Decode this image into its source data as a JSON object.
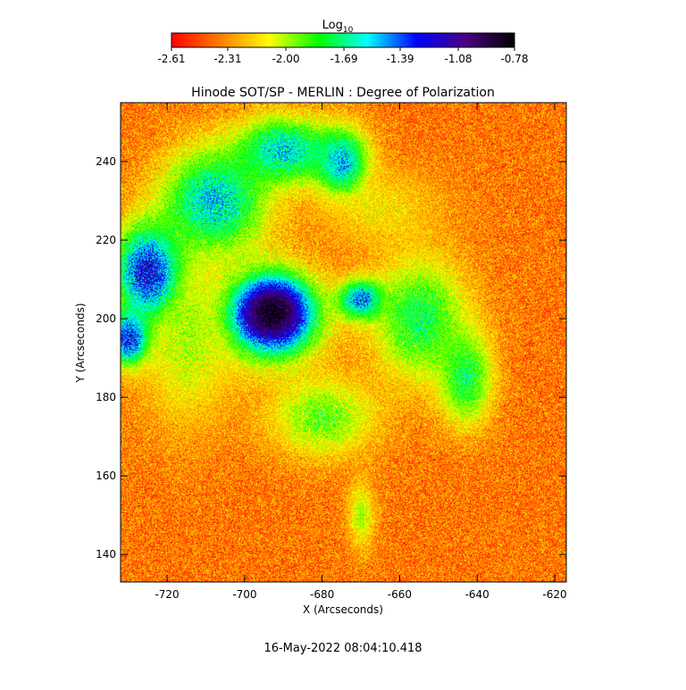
{
  "chart_data": {
    "type": "heatmap",
    "title": "Hinode SOT/SP - MERLIN : Degree of Polarization",
    "xlabel": "X (Arcseconds)",
    "ylabel": "Y (Arcseconds)",
    "xlim": [
      -732,
      -617
    ],
    "ylim": [
      133,
      255
    ],
    "x_ticks": [
      -720,
      -700,
      -680,
      -660,
      -640,
      -620
    ],
    "y_ticks": [
      140,
      160,
      180,
      200,
      220,
      240
    ],
    "colorbar": {
      "label_main": "Log",
      "label_sub": "10",
      "range": [
        -2.61,
        -0.78
      ],
      "tick_values": [
        -2.61,
        -2.31,
        -2.0,
        -1.69,
        -1.39,
        -1.08,
        -0.78
      ],
      "tick_labels": [
        "-2.61",
        "-2.31",
        "-2.00",
        "-1.69",
        "-1.39",
        "-1.08",
        "-0.78"
      ],
      "colormap": [
        "#ff0000",
        "#ff7f00",
        "#ffff00",
        "#00ff00",
        "#00ffff",
        "#0000ff",
        "#4b0082",
        "#000000"
      ]
    },
    "timestamp": "16-May-2022 08:04:10.418",
    "features": [
      {
        "x": -693,
        "y": 201,
        "rx": 14,
        "ry": 13,
        "value": -1.0
      },
      {
        "x": -693,
        "y": 202,
        "rx": 8,
        "ry": 7,
        "value": -0.85
      },
      {
        "x": -725,
        "y": 212,
        "rx": 10,
        "ry": 14,
        "value": -1.2
      },
      {
        "x": -730,
        "y": 195,
        "rx": 6,
        "ry": 8,
        "value": -1.25
      },
      {
        "x": -708,
        "y": 230,
        "rx": 16,
        "ry": 16,
        "value": -1.55
      },
      {
        "x": -690,
        "y": 243,
        "rx": 14,
        "ry": 10,
        "value": -1.55
      },
      {
        "x": -675,
        "y": 240,
        "rx": 8,
        "ry": 10,
        "value": -1.5
      },
      {
        "x": -670,
        "y": 205,
        "rx": 7,
        "ry": 6,
        "value": -1.4
      },
      {
        "x": -655,
        "y": 200,
        "rx": 14,
        "ry": 18,
        "value": -1.75
      },
      {
        "x": -643,
        "y": 185,
        "rx": 8,
        "ry": 14,
        "value": -1.75
      },
      {
        "x": -680,
        "y": 175,
        "rx": 16,
        "ry": 12,
        "value": -1.9
      },
      {
        "x": -715,
        "y": 195,
        "rx": 14,
        "ry": 25,
        "value": -2.0
      },
      {
        "x": -670,
        "y": 150,
        "rx": 4,
        "ry": 10,
        "value": -2.0
      },
      {
        "x": -665,
        "y": 228,
        "rx": 18,
        "ry": 12,
        "value": -2.15
      }
    ]
  }
}
